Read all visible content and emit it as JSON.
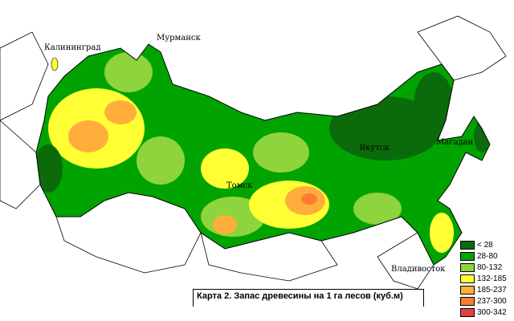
{
  "title": "Карта 2. Запас древесины на 1 га лесов (куб.м)",
  "cities": [
    {
      "name": "Калининград"
    },
    {
      "name": "Мурманск"
    },
    {
      "name": "Томск"
    },
    {
      "name": "Якутск"
    },
    {
      "name": "Магадан"
    },
    {
      "name": "Владивосток"
    }
  ],
  "legend": [
    {
      "label": "< 28",
      "color": "#0b6b0b"
    },
    {
      "label": "28-80",
      "color": "#00a300"
    },
    {
      "label": "80-132",
      "color": "#8ed43c"
    },
    {
      "label": "132-185",
      "color": "#ffff33"
    },
    {
      "label": "185-237",
      "color": "#ffae3c"
    },
    {
      "label": "237-300",
      "color": "#ff7a30"
    },
    {
      "label": "300-342",
      "color": "#e04040"
    }
  ]
}
